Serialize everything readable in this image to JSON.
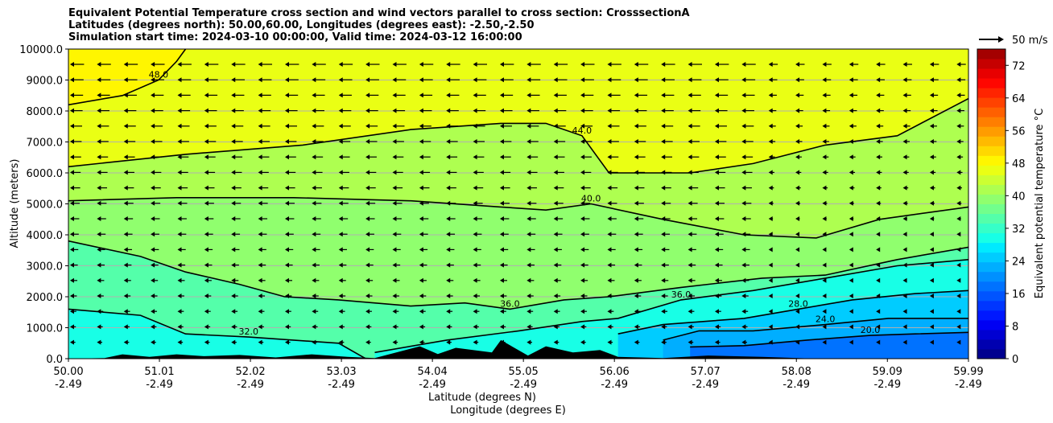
{
  "chart_data": {
    "type": "heatmap",
    "title_lines": [
      "Equivalent Potential Temperature cross section and wind vectors parallel to cross section: CrosssectionA",
      "Latitudes (degrees north): 50.00,60.00, Longitudes (degrees east): -2.50,-2.50",
      "Simulation start time: 2024-03-10 00:00:00, Valid time: 2024-03-12 16:00:00"
    ],
    "xlabel_lat": "Latitude (degrees N)",
    "xlabel_lon": "Longitude (degrees E)",
    "ylabel": "Altitude (meters)",
    "x_range": [
      50.0,
      59.99
    ],
    "ylim": [
      0,
      10000
    ],
    "x_ticks": [
      {
        "lat": "50.00",
        "lon": "-2.49",
        "value": 50.0
      },
      {
        "lat": "51.01",
        "lon": "-2.49",
        "value": 51.01
      },
      {
        "lat": "52.02",
        "lon": "-2.49",
        "value": 52.02
      },
      {
        "lat": "53.03",
        "lon": "-2.49",
        "value": 53.03
      },
      {
        "lat": "54.04",
        "lon": "-2.49",
        "value": 54.04
      },
      {
        "lat": "55.05",
        "lon": "-2.49",
        "value": 55.05
      },
      {
        "lat": "56.06",
        "lon": "-2.49",
        "value": 56.06
      },
      {
        "lat": "57.07",
        "lon": "-2.49",
        "value": 57.07
      },
      {
        "lat": "58.08",
        "lon": "-2.49",
        "value": 58.08
      },
      {
        "lat": "59.09",
        "lon": "-2.49",
        "value": 59.09
      },
      {
        "lat": "59.99",
        "lon": "-2.49",
        "value": 59.99
      }
    ],
    "y_ticks": [
      {
        "label": "0.0",
        "value": 0
      },
      {
        "label": "1000.0",
        "value": 1000
      },
      {
        "label": "2000.0",
        "value": 2000
      },
      {
        "label": "3000.0",
        "value": 3000
      },
      {
        "label": "4000.0",
        "value": 4000
      },
      {
        "label": "5000.0",
        "value": 5000
      },
      {
        "label": "6000.0",
        "value": 6000
      },
      {
        "label": "7000.0",
        "value": 7000
      },
      {
        "label": "8000.0",
        "value": 8000
      },
      {
        "label": "9000.0",
        "value": 9000
      },
      {
        "label": "10000.0",
        "value": 10000
      }
    ],
    "grid": "horizontal",
    "colorbar": {
      "label": "Equivalent potential temperature °C",
      "range": [
        0,
        76
      ],
      "ticks": [
        {
          "label": "0",
          "value": 0
        },
        {
          "label": "8",
          "value": 8
        },
        {
          "label": "16",
          "value": 16
        },
        {
          "label": "24",
          "value": 24
        },
        {
          "label": "32",
          "value": 32
        },
        {
          "label": "40",
          "value": 40
        },
        {
          "label": "48",
          "value": 48
        },
        {
          "label": "56",
          "value": 56
        },
        {
          "label": "64",
          "value": 64
        },
        {
          "label": "72",
          "value": 72
        }
      ],
      "colors": [
        "#00008f",
        "#0000b0",
        "#0000d2",
        "#0000f3",
        "#0018ff",
        "#0036ff",
        "#0054ff",
        "#0072ff",
        "#0090ff",
        "#00aeff",
        "#00ccff",
        "#00eaff",
        "#18ffe6",
        "#36ffc8",
        "#54ffaa",
        "#72ff8c",
        "#90ff6e",
        "#aeff50",
        "#ccff32",
        "#eaff14",
        "#fff600",
        "#ffd800",
        "#ffba00",
        "#ff9c00",
        "#ff7e00",
        "#ff6000",
        "#ff4200",
        "#ff2400",
        "#ff0600",
        "#e80000",
        "#c60000",
        "#a40000"
      ]
    },
    "wind_key": {
      "label": "50 m/s",
      "value": 50
    },
    "contours": [
      {
        "level": 20.0,
        "label": "20.0",
        "points": [
          [
            56.9,
            380
          ],
          [
            57.5,
            420
          ],
          [
            58.2,
            600
          ],
          [
            58.9,
            750
          ],
          [
            59.4,
            800
          ],
          [
            59.99,
            850
          ]
        ]
      },
      {
        "level": 24.0,
        "label": "24.0",
        "points": [
          [
            56.6,
            600
          ],
          [
            57.0,
            900
          ],
          [
            57.6,
            900
          ],
          [
            58.4,
            1100
          ],
          [
            59.1,
            1300
          ],
          [
            59.99,
            1300
          ]
        ]
      },
      {
        "level": 28.0,
        "label": "28.0",
        "points": [
          [
            56.1,
            800
          ],
          [
            56.6,
            1100
          ],
          [
            57.5,
            1300
          ],
          [
            58.1,
            1600
          ],
          [
            58.7,
            1900
          ],
          [
            59.4,
            2100
          ],
          [
            59.99,
            2200
          ]
        ]
      },
      {
        "level": 32.0,
        "label": "32.0",
        "points": [
          [
            50.0,
            1600
          ],
          [
            50.8,
            1400
          ],
          [
            51.3,
            800
          ],
          [
            52.0,
            700
          ],
          [
            53.0,
            500
          ],
          [
            53.3,
            0
          ]
        ]
      },
      {
        "level": 36.0,
        "label": "36.0",
        "points": [
          [
            53.4,
            200
          ],
          [
            54.2,
            600
          ],
          [
            55.0,
            900
          ],
          [
            55.7,
            1200
          ],
          [
            56.1,
            1300
          ],
          [
            56.8,
            1900
          ],
          [
            57.6,
            2200
          ],
          [
            58.4,
            2600
          ],
          [
            59.2,
            3000
          ],
          [
            59.99,
            3200
          ]
        ]
      },
      {
        "level": 36.0,
        "label": "36.0",
        "points": [
          [
            50.0,
            3800
          ],
          [
            50.8,
            3300
          ],
          [
            51.3,
            2800
          ],
          [
            51.9,
            2400
          ],
          [
            52.4,
            2000
          ],
          [
            53.0,
            1900
          ],
          [
            53.8,
            1700
          ],
          [
            54.4,
            1800
          ],
          [
            54.9,
            1600
          ],
          [
            55.5,
            1900
          ],
          [
            56.0,
            2000
          ],
          [
            56.8,
            2300
          ],
          [
            57.7,
            2600
          ],
          [
            58.4,
            2700
          ],
          [
            59.2,
            3200
          ],
          [
            59.99,
            3600
          ]
        ]
      },
      {
        "level": 40.0,
        "label": "40.0",
        "points": [
          [
            50.0,
            5100
          ],
          [
            51.2,
            5200
          ],
          [
            52.5,
            5200
          ],
          [
            53.8,
            5100
          ],
          [
            54.8,
            4900
          ],
          [
            55.3,
            4800
          ],
          [
            55.8,
            5000
          ],
          [
            56.6,
            4500
          ],
          [
            57.5,
            4000
          ],
          [
            58.3,
            3900
          ],
          [
            59.0,
            4500
          ],
          [
            59.99,
            4900
          ]
        ]
      },
      {
        "level": 44.0,
        "label": "44.0",
        "points": [
          [
            50.0,
            6200
          ],
          [
            51.3,
            6600
          ],
          [
            52.6,
            6900
          ],
          [
            53.8,
            7400
          ],
          [
            54.8,
            7600
          ],
          [
            55.3,
            7600
          ],
          [
            55.7,
            7200
          ],
          [
            56.0,
            6000
          ],
          [
            56.9,
            6000
          ],
          [
            57.6,
            6300
          ],
          [
            58.4,
            6900
          ],
          [
            59.2,
            7200
          ],
          [
            59.99,
            8400
          ]
        ]
      },
      {
        "level": 48.0,
        "label": "48.0",
        "points": [
          [
            50.0,
            8200
          ],
          [
            50.6,
            8500
          ],
          [
            51.0,
            9000
          ],
          [
            51.2,
            9600
          ],
          [
            51.3,
            10000
          ]
        ]
      }
    ],
    "terrain": [
      [
        50.0,
        0
      ],
      [
        50.4,
        20
      ],
      [
        50.6,
        140
      ],
      [
        50.9,
        60
      ],
      [
        51.2,
        140
      ],
      [
        51.5,
        80
      ],
      [
        51.9,
        120
      ],
      [
        52.3,
        40
      ],
      [
        52.7,
        140
      ],
      [
        53.1,
        60
      ],
      [
        53.4,
        20
      ],
      [
        53.9,
        400
      ],
      [
        54.1,
        150
      ],
      [
        54.3,
        350
      ],
      [
        54.7,
        200
      ],
      [
        54.8,
        600
      ],
      [
        55.1,
        100
      ],
      [
        55.3,
        400
      ],
      [
        55.6,
        200
      ],
      [
        55.9,
        280
      ],
      [
        56.1,
        60
      ],
      [
        56.6,
        20
      ],
      [
        57.1,
        100
      ],
      [
        57.7,
        60
      ],
      [
        58.2,
        10
      ],
      [
        59.99,
        0
      ]
    ]
  }
}
